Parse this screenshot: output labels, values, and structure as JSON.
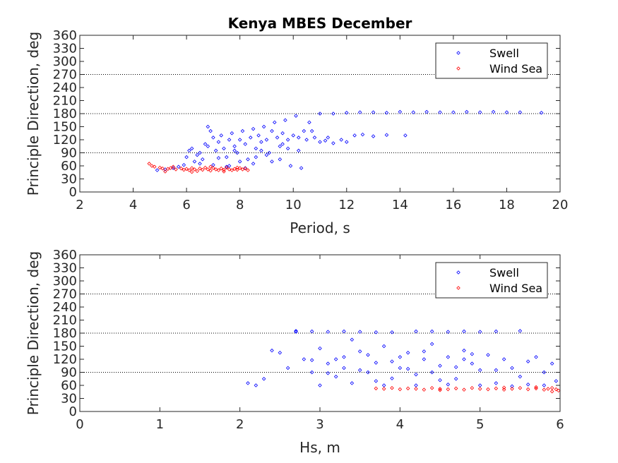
{
  "figure_title": "Kenya MBES December",
  "colors": {
    "swell": "#0000ff",
    "wind_sea": "#ff0000",
    "axis": "#262626",
    "ref_line": "#000000"
  },
  "chart_data": [
    {
      "type": "scatter",
      "title": "Kenya MBES December",
      "xlabel": "Period, s",
      "ylabel": "Principle Direction, deg",
      "xlim": [
        2,
        20
      ],
      "ylim": [
        0,
        360
      ],
      "xticks": [
        "2",
        "4",
        "6",
        "8",
        "10",
        "12",
        "14",
        "16",
        "18",
        "20"
      ],
      "yticks": [
        "0",
        "30",
        "60",
        "90",
        "120",
        "150",
        "180",
        "210",
        "240",
        "270",
        "300",
        "330",
        "360"
      ],
      "reference_lines": [
        90,
        180,
        270
      ],
      "legend": {
        "position": "top-right",
        "entries": [
          "Swell",
          "Wind Sea"
        ]
      },
      "series": [
        {
          "name": "Swell",
          "points": [
            [
              4.9,
              50
            ],
            [
              5.2,
              52
            ],
            [
              5.5,
              55
            ],
            [
              5.7,
              58
            ],
            [
              5.9,
              62
            ],
            [
              6.0,
              80
            ],
            [
              6.1,
              95
            ],
            [
              6.2,
              100
            ],
            [
              6.3,
              70
            ],
            [
              6.4,
              85
            ],
            [
              6.5,
              90
            ],
            [
              6.6,
              75
            ],
            [
              6.7,
              110
            ],
            [
              6.8,
              150
            ],
            [
              6.9,
              140
            ],
            [
              7.0,
              125
            ],
            [
              7.1,
              95
            ],
            [
              7.2,
              115
            ],
            [
              7.3,
              130
            ],
            [
              7.4,
              100
            ],
            [
              7.5,
              80
            ],
            [
              7.6,
              120
            ],
            [
              7.7,
              135
            ],
            [
              7.8,
              105
            ],
            [
              7.9,
              90
            ],
            [
              8.0,
              120
            ],
            [
              8.1,
              140
            ],
            [
              8.2,
              110
            ],
            [
              8.3,
              75
            ],
            [
              8.4,
              125
            ],
            [
              8.5,
              145
            ],
            [
              8.6,
              100
            ],
            [
              8.7,
              130
            ],
            [
              8.8,
              115
            ],
            [
              8.9,
              150
            ],
            [
              9.0,
              120
            ],
            [
              9.1,
              90
            ],
            [
              9.2,
              140
            ],
            [
              9.3,
              160
            ],
            [
              9.4,
              125
            ],
            [
              9.5,
              105
            ],
            [
              9.6,
              135
            ],
            [
              9.7,
              165
            ],
            [
              9.8,
              120
            ],
            [
              9.9,
              60
            ],
            [
              10.0,
              130
            ],
            [
              10.1,
              175
            ],
            [
              10.2,
              125
            ],
            [
              10.3,
              55
            ],
            [
              10.4,
              140
            ],
            [
              10.5,
              120
            ],
            [
              10.6,
              160
            ],
            [
              10.8,
              125
            ],
            [
              11.0,
              115
            ],
            [
              11.2,
              118
            ],
            [
              11.5,
              112
            ],
            [
              11.8,
              120
            ],
            [
              12.0,
              115
            ],
            [
              12.3,
              130
            ],
            [
              12.6,
              132
            ],
            [
              13.0,
              128
            ],
            [
              13.5,
              131
            ],
            [
              14.2,
              130
            ],
            [
              11.0,
              180
            ],
            [
              11.5,
              180
            ],
            [
              12.0,
              182
            ],
            [
              12.5,
              183
            ],
            [
              13.0,
              183
            ],
            [
              13.5,
              182
            ],
            [
              14.0,
              184
            ],
            [
              14.5,
              183
            ],
            [
              15.0,
              184
            ],
            [
              15.5,
              183
            ],
            [
              16.0,
              183
            ],
            [
              16.5,
              184
            ],
            [
              17.0,
              183
            ],
            [
              17.5,
              184
            ],
            [
              18.0,
              183
            ],
            [
              18.5,
              183
            ],
            [
              19.3,
              182
            ],
            [
              7.0,
              62
            ],
            [
              7.5,
              58
            ],
            [
              8.0,
              70
            ],
            [
              8.5,
              65
            ],
            [
              9.0,
              85
            ],
            [
              9.5,
              75
            ],
            [
              6.5,
              65
            ],
            [
              7.8,
              95
            ],
            [
              8.8,
              95
            ],
            [
              9.8,
              100
            ],
            [
              6.8,
              105
            ],
            [
              7.2,
              78
            ],
            [
              7.6,
              60
            ],
            [
              8.2,
              55
            ],
            [
              8.6,
              80
            ],
            [
              9.2,
              70
            ],
            [
              9.6,
              110
            ],
            [
              10.2,
              95
            ],
            [
              10.7,
              140
            ],
            [
              11.3,
              125
            ]
          ]
        },
        {
          "name": "Wind Sea",
          "points": [
            [
              4.6,
              65
            ],
            [
              4.7,
              60
            ],
            [
              4.8,
              58
            ],
            [
              5.0,
              56
            ],
            [
              5.1,
              54
            ],
            [
              5.3,
              53
            ],
            [
              5.4,
              55
            ],
            [
              5.6,
              52
            ],
            [
              5.8,
              54
            ],
            [
              5.9,
              51
            ],
            [
              6.0,
              53
            ],
            [
              6.1,
              50
            ],
            [
              6.2,
              55
            ],
            [
              6.3,
              52
            ],
            [
              6.4,
              48
            ],
            [
              6.5,
              54
            ],
            [
              6.6,
              51
            ],
            [
              6.7,
              56
            ],
            [
              6.8,
              52
            ],
            [
              6.9,
              49
            ],
            [
              7.0,
              55
            ],
            [
              7.1,
              52
            ],
            [
              7.2,
              50
            ],
            [
              7.3,
              54
            ],
            [
              7.4,
              51
            ],
            [
              7.5,
              56
            ],
            [
              7.6,
              52
            ],
            [
              7.7,
              50
            ],
            [
              7.8,
              53
            ],
            [
              7.9,
              51
            ],
            [
              8.0,
              55
            ],
            [
              8.1,
              52
            ],
            [
              8.2,
              54
            ],
            [
              8.3,
              50
            ],
            [
              5.5,
              58
            ],
            [
              6.2,
              46
            ],
            [
              6.9,
              58
            ],
            [
              7.4,
              47
            ],
            [
              5.2,
              47
            ],
            [
              7.9,
              56
            ]
          ]
        }
      ]
    },
    {
      "type": "scatter",
      "title": "",
      "xlabel": "Hs, m",
      "ylabel": "Principle Direction, deg",
      "xlim": [
        0,
        6
      ],
      "ylim": [
        0,
        360
      ],
      "xticks": [
        "0",
        "1",
        "2",
        "3",
        "4",
        "5",
        "6"
      ],
      "yticks": [
        "0",
        "30",
        "60",
        "90",
        "120",
        "150",
        "180",
        "210",
        "240",
        "270",
        "300",
        "330",
        "360"
      ],
      "reference_lines": [
        90,
        180,
        270
      ],
      "legend": {
        "position": "top-right",
        "entries": [
          "Swell",
          "Wind Sea"
        ]
      },
      "series": [
        {
          "name": "Swell",
          "points": [
            [
              2.1,
              65
            ],
            [
              2.2,
              60
            ],
            [
              2.3,
              75
            ],
            [
              2.4,
              140
            ],
            [
              2.5,
              135
            ],
            [
              2.6,
              100
            ],
            [
              2.7,
              185
            ],
            [
              2.8,
              120
            ],
            [
              2.9,
              90
            ],
            [
              3.0,
              145
            ],
            [
              3.1,
              110
            ],
            [
              3.2,
              80
            ],
            [
              3.3,
              125
            ],
            [
              3.4,
              165
            ],
            [
              3.5,
              95
            ],
            [
              3.6,
              130
            ],
            [
              3.7,
              70
            ],
            [
              3.8,
              150
            ],
            [
              3.9,
              115
            ],
            [
              4.0,
              100
            ],
            [
              4.1,
              135
            ],
            [
              4.2,
              85
            ],
            [
              4.3,
              120
            ],
            [
              4.4,
              155
            ],
            [
              4.5,
              105
            ],
            [
              4.6,
              125
            ],
            [
              4.7,
              75
            ],
            [
              4.8,
              140
            ],
            [
              4.9,
              110
            ],
            [
              5.0,
              95
            ],
            [
              5.1,
              130
            ],
            [
              5.2,
              65
            ],
            [
              5.3,
              120
            ],
            [
              5.4,
              100
            ],
            [
              5.5,
              80
            ],
            [
              5.6,
              115
            ],
            [
              5.7,
              125
            ],
            [
              5.8,
              90
            ],
            [
              5.9,
              110
            ],
            [
              5.95,
              70
            ],
            [
              2.7,
              183
            ],
            [
              2.9,
              184
            ],
            [
              3.1,
              183
            ],
            [
              3.3,
              184
            ],
            [
              3.5,
              183
            ],
            [
              3.7,
              182
            ],
            [
              3.9,
              182
            ],
            [
              4.2,
              184
            ],
            [
              4.4,
              184
            ],
            [
              4.6,
              183
            ],
            [
              4.8,
              184
            ],
            [
              5.0,
              183
            ],
            [
              5.2,
              184
            ],
            [
              5.5,
              185
            ],
            [
              3.0,
              60
            ],
            [
              3.2,
              120
            ],
            [
              3.4,
              65
            ],
            [
              3.6,
              90
            ],
            [
              3.8,
              60
            ],
            [
              4.0,
              125
            ],
            [
              4.2,
              60
            ],
            [
              4.4,
              90
            ],
            [
              4.6,
              62
            ],
            [
              4.8,
              120
            ],
            [
              5.0,
              60
            ],
            [
              5.2,
              95
            ],
            [
              5.4,
              58
            ],
            [
              5.6,
              62
            ],
            [
              5.8,
              60
            ],
            [
              2.9,
              118
            ],
            [
              3.1,
              88
            ],
            [
              3.3,
              100
            ],
            [
              3.5,
              138
            ],
            [
              3.7,
              112
            ],
            [
              3.9,
              76
            ],
            [
              4.1,
              98
            ],
            [
              4.3,
              138
            ],
            [
              4.5,
              72
            ],
            [
              4.7,
              102
            ],
            [
              4.9,
              132
            ]
          ]
        },
        {
          "name": "Wind Sea",
          "points": [
            [
              3.7,
              53
            ],
            [
              3.8,
              52
            ],
            [
              3.9,
              54
            ],
            [
              4.0,
              51
            ],
            [
              4.1,
              53
            ],
            [
              4.2,
              52
            ],
            [
              4.3,
              50
            ],
            [
              4.4,
              54
            ],
            [
              4.5,
              52
            ],
            [
              4.6,
              51
            ],
            [
              4.7,
              53
            ],
            [
              4.8,
              50
            ],
            [
              4.9,
              54
            ],
            [
              5.0,
              52
            ],
            [
              5.1,
              51
            ],
            [
              5.2,
              53
            ],
            [
              5.3,
              50
            ],
            [
              5.4,
              52
            ],
            [
              5.5,
              54
            ],
            [
              5.6,
              51
            ],
            [
              5.7,
              53
            ],
            [
              5.8,
              50
            ],
            [
              5.85,
              52
            ],
            [
              5.9,
              54
            ],
            [
              5.95,
              51
            ],
            [
              5.98,
              48
            ],
            [
              5.3,
              55
            ],
            [
              4.5,
              49
            ],
            [
              5.7,
              56
            ],
            [
              5.9,
              46
            ]
          ]
        }
      ]
    }
  ]
}
